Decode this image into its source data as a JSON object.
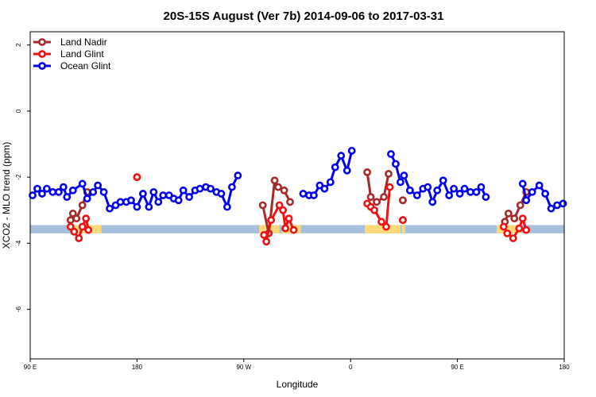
{
  "chart_data": {
    "type": "line",
    "title": "20S-15S August (Ver 7b)   2014-09-06 to 2017-03-31",
    "xlabel": "Longitude",
    "ylabel": "XCO2 - MLO trend (ppm)",
    "xlim": [
      90,
      540
    ],
    "ylim": [
      -7.5,
      2.4
    ],
    "x_ticks": [
      {
        "value": 90,
        "label": "90 E"
      },
      {
        "value": 180,
        "label": "180"
      },
      {
        "value": 270,
        "label": "90 W"
      },
      {
        "value": 360,
        "label": "0"
      },
      {
        "value": 450,
        "label": "90 E"
      },
      {
        "value": 540,
        "label": "180"
      }
    ],
    "y_ticks": [
      {
        "value": 2,
        "label": "2"
      },
      {
        "value": 0,
        "label": "0"
      },
      {
        "value": -2,
        "label": "-2"
      },
      {
        "value": -4,
        "label": "-4"
      },
      {
        "value": -6,
        "label": "-6"
      }
    ],
    "legend_position": "top-left",
    "background_band": {
      "y_range": [
        -3.45,
        -3.7
      ],
      "color": "#a7bfdd"
    },
    "land_highlights": {
      "color": "#ffd97a",
      "x_ranges": [
        [
          124,
          150
        ],
        [
          283,
          300
        ],
        [
          302,
          318
        ],
        [
          372,
          382
        ],
        [
          382,
          402
        ],
        [
          403,
          406
        ],
        [
          483,
          504
        ]
      ]
    },
    "series": [
      {
        "name": "Land Nadir",
        "color": "#a52a2a",
        "segments": [
          [
            [
              124,
              -3.3
            ],
            [
              126,
              -3.1
            ],
            [
              129,
              -3.25
            ],
            [
              134,
              -2.85
            ],
            [
              138,
              -2.45
            ]
          ],
          [
            [
              286,
              -2.85
            ],
            [
              291,
              -3.7
            ],
            [
              296,
              -2.1
            ],
            [
              299,
              -2.3
            ],
            [
              304,
              -2.4
            ],
            [
              309,
              -2.75
            ]
          ],
          [
            [
              404,
              -2.7
            ],
            [
              404,
              -2.7
            ]
          ],
          [
            [
              374,
              -1.85
            ],
            [
              377,
              -2.6
            ],
            [
              382,
              -2.75
            ],
            [
              388,
              -2.6
            ],
            [
              392,
              -1.9
            ]
          ],
          [
            [
              490,
              -3.35
            ],
            [
              493,
              -3.1
            ],
            [
              498,
              -3.25
            ],
            [
              503,
              -2.85
            ],
            [
              508,
              -2.45
            ]
          ]
        ]
      },
      {
        "name": "Land Glint",
        "color": "#ee1111",
        "segments": [
          [
            [
              124,
              -3.5
            ],
            [
              127,
              -3.65
            ],
            [
              131,
              -3.85
            ],
            [
              134,
              -3.5
            ],
            [
              137,
              -3.25
            ],
            [
              139,
              -3.6
            ]
          ],
          [
            [
              180,
              -2.0
            ],
            [
              180,
              -2.0
            ]
          ],
          [
            [
              287,
              -3.75
            ],
            [
              289,
              -3.95
            ],
            [
              293,
              -3.3
            ],
            [
              300,
              -2.85
            ],
            [
              303,
              -3.0
            ],
            [
              305,
              -3.55
            ],
            [
              308,
              -3.25
            ],
            [
              312,
              -3.6
            ]
          ],
          [
            [
              374,
              -2.8
            ],
            [
              377,
              -2.9
            ],
            [
              380,
              -3.0
            ],
            [
              386,
              -3.35
            ],
            [
              390,
              -3.5
            ],
            [
              393,
              -2.3
            ]
          ],
          [
            [
              404,
              -3.3
            ],
            [
              404,
              -3.3
            ]
          ],
          [
            [
              489,
              -3.5
            ],
            [
              492,
              -3.7
            ],
            [
              497,
              -3.85
            ],
            [
              502,
              -3.55
            ],
            [
              505,
              -3.25
            ],
            [
              508,
              -3.6
            ]
          ]
        ]
      },
      {
        "name": "Ocean Glint",
        "color": "#0000ee",
        "segments": [
          [
            [
              92,
              -2.55
            ],
            [
              96,
              -2.35
            ],
            [
              100,
              -2.5
            ],
            [
              104,
              -2.35
            ],
            [
              109,
              -2.45
            ],
            [
              114,
              -2.45
            ],
            [
              118,
              -2.3
            ],
            [
              121,
              -2.6
            ],
            [
              126,
              -2.4
            ],
            [
              134,
              -2.2
            ],
            [
              138,
              -2.65
            ],
            [
              143,
              -2.45
            ],
            [
              147,
              -2.25
            ],
            [
              152,
              -2.45
            ],
            [
              157,
              -2.95
            ],
            [
              162,
              -2.85
            ],
            [
              166,
              -2.75
            ],
            [
              171,
              -2.75
            ],
            [
              175,
              -2.7
            ],
            [
              180,
              -2.9
            ],
            [
              185,
              -2.5
            ],
            [
              190,
              -2.9
            ],
            [
              194,
              -2.45
            ],
            [
              198,
              -2.75
            ],
            [
              202,
              -2.55
            ],
            [
              207,
              -2.55
            ],
            [
              211,
              -2.65
            ],
            [
              215,
              -2.7
            ],
            [
              219,
              -2.4
            ],
            [
              224,
              -2.6
            ],
            [
              229,
              -2.4
            ],
            [
              233,
              -2.35
            ],
            [
              238,
              -2.3
            ],
            [
              242,
              -2.35
            ],
            [
              247,
              -2.45
            ],
            [
              251,
              -2.5
            ],
            [
              256,
              -2.9
            ],
            [
              260,
              -2.3
            ],
            [
              265,
              -1.95
            ]
          ],
          [
            [
              320,
              -2.5
            ],
            [
              325,
              -2.55
            ],
            [
              329,
              -2.55
            ],
            [
              334,
              -2.25
            ],
            [
              338,
              -2.35
            ],
            [
              343,
              -2.15
            ],
            [
              347,
              -1.7
            ],
            [
              352,
              -1.35
            ],
            [
              357,
              -1.8
            ],
            [
              361,
              -1.2
            ]
          ],
          [
            [
              394,
              -1.3
            ],
            [
              398,
              -1.6
            ],
            [
              402,
              -2.15
            ],
            [
              405,
              -1.95
            ],
            [
              410,
              -2.4
            ],
            [
              416,
              -2.55
            ],
            [
              421,
              -2.35
            ],
            [
              425,
              -2.3
            ],
            [
              429,
              -2.75
            ],
            [
              433,
              -2.4
            ],
            [
              438,
              -2.1
            ],
            [
              443,
              -2.55
            ],
            [
              447,
              -2.35
            ],
            [
              452,
              -2.5
            ],
            [
              456,
              -2.35
            ],
            [
              461,
              -2.45
            ],
            [
              466,
              -2.45
            ],
            [
              470,
              -2.3
            ],
            [
              474,
              -2.6
            ]
          ],
          [
            [
              505,
              -2.2
            ],
            [
              508,
              -2.7
            ],
            [
              513,
              -2.45
            ],
            [
              519,
              -2.25
            ],
            [
              524,
              -2.5
            ],
            [
              529,
              -2.95
            ],
            [
              534,
              -2.85
            ],
            [
              539,
              -2.8
            ]
          ]
        ]
      }
    ]
  }
}
